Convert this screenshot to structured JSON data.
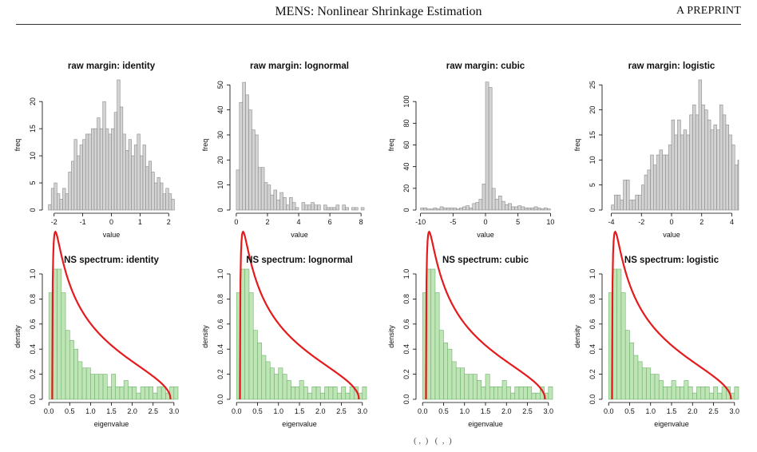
{
  "header": {
    "title": "MENS: Nonlinear Shrinkage Estimation",
    "right_tag": "A PREPRINT"
  },
  "caption_fragment": "( ,  )   (  ,  )",
  "colors": {
    "hist_fill": "#d3d3d3",
    "hist_stroke": "#8a8a8a",
    "spec_fill": "#bfe5b7",
    "spec_stroke": "#6cb26a",
    "curve": "#e41a1c"
  },
  "chart_data": [
    {
      "type": "bar",
      "title": "raw margin: identity",
      "xlabel": "value",
      "ylabel": "freq",
      "xlim": [
        -2.3,
        2.3
      ],
      "ylim": [
        0,
        24
      ],
      "xticks": [
        -2,
        -1,
        0,
        1,
        2
      ],
      "yticks": [
        0,
        5,
        10,
        15,
        20
      ],
      "bin_start": -2.2,
      "bin_width": 0.1,
      "values": [
        1,
        4,
        5,
        3,
        2,
        4,
        3,
        7,
        9,
        13,
        10,
        12,
        13,
        14,
        14,
        15,
        15,
        17,
        15,
        20,
        15,
        14,
        15,
        18,
        24,
        19,
        14,
        11,
        13,
        10,
        12,
        14,
        10,
        12,
        8,
        9,
        7,
        5,
        6,
        5,
        3,
        4,
        3,
        2
      ]
    },
    {
      "type": "bar",
      "title": "raw margin: lognormal",
      "xlabel": "value",
      "ylabel": "freq",
      "xlim": [
        -0.2,
        8.3
      ],
      "ylim": [
        0,
        52
      ],
      "xticks": [
        0,
        2,
        4,
        6,
        8
      ],
      "yticks": [
        0,
        10,
        20,
        30,
        40,
        50
      ],
      "bin_start": 0,
      "bin_width": 0.2,
      "values": [
        16,
        43,
        51,
        46,
        40,
        32,
        30,
        17,
        17,
        11,
        10,
        6,
        8,
        4,
        7,
        5,
        2,
        5,
        3,
        1,
        0,
        3,
        2,
        2,
        3,
        2,
        2,
        0,
        2,
        1,
        1,
        1,
        2,
        0,
        2,
        1,
        0,
        1,
        1,
        0,
        1
      ]
    },
    {
      "type": "bar",
      "title": "raw margin: cubic",
      "xlabel": "value",
      "ylabel": "freq",
      "xlim": [
        -10.2,
        10.2
      ],
      "ylim": [
        0,
        120
      ],
      "xticks": [
        -10,
        -5,
        0,
        5,
        10
      ],
      "yticks": [
        0,
        20,
        40,
        60,
        80,
        100
      ],
      "bin_start": -10,
      "bin_width": 0.5,
      "values": [
        2,
        2,
        1,
        1,
        2,
        1,
        3,
        2,
        2,
        2,
        2,
        1,
        2,
        3,
        4,
        2,
        6,
        7,
        10,
        24,
        118,
        113,
        20,
        10,
        13,
        8,
        5,
        6,
        3,
        3,
        4,
        3,
        2,
        2,
        2,
        3,
        2,
        1,
        2,
        1
      ]
    },
    {
      "type": "bar",
      "title": "raw margin: logistic",
      "xlabel": "value",
      "ylabel": "freq",
      "xlim": [
        -4.4,
        4.4
      ],
      "ylim": [
        0,
        26
      ],
      "xticks": [
        -4,
        -2,
        0,
        2,
        4
      ],
      "yticks": [
        0,
        5,
        10,
        15,
        20,
        25
      ],
      "bin_start": -4,
      "bin_width": 0.2,
      "values": [
        1,
        3,
        3,
        2,
        6,
        6,
        2,
        2,
        3,
        3,
        5,
        7,
        8,
        11,
        9,
        11,
        12,
        11,
        11,
        13,
        18,
        15,
        18,
        15,
        16,
        15,
        19,
        21,
        19,
        26,
        21,
        20,
        18,
        16,
        17,
        16,
        21,
        19,
        17,
        15,
        13,
        9,
        10,
        7,
        10,
        11,
        13,
        9,
        7,
        5,
        8,
        6,
        8,
        7,
        5,
        5,
        6,
        6,
        4,
        4,
        3,
        2,
        1,
        1,
        1,
        3,
        4,
        4,
        1,
        1,
        2,
        4,
        4
      ]
    },
    {
      "type": "bar",
      "title": "NS spectrum: identity",
      "xlabel": "eigenvalue",
      "ylabel": "density",
      "xlim": [
        -0.08,
        3.08
      ],
      "ylim": [
        0,
        1.0
      ],
      "xticks": [
        0.0,
        0.5,
        1.0,
        1.5,
        2.0,
        2.5,
        3.0
      ],
      "yticks": [
        0.0,
        0.2,
        0.4,
        0.6,
        0.8,
        1.0
      ],
      "bin_start": 0,
      "bin_width": 0.1,
      "values": [
        0.85,
        1.2,
        1.2,
        0.85,
        0.55,
        0.47,
        0.4,
        0.3,
        0.25,
        0.25,
        0.2,
        0.2,
        0.2,
        0.2,
        0.1,
        0.2,
        0.1,
        0.1,
        0.15,
        0.1,
        0.1,
        0.05,
        0.1,
        0.1,
        0.1,
        0.05,
        0.1,
        0.1,
        0.05,
        0.1,
        0.1
      ]
    },
    {
      "type": "bar",
      "title": "NS spectrum: lognormal",
      "xlabel": "eigenvalue",
      "ylabel": "density",
      "xlim": [
        -0.08,
        3.08
      ],
      "ylim": [
        0,
        1.0
      ],
      "xticks": [
        0.0,
        0.5,
        1.0,
        1.5,
        2.0,
        2.5,
        3.0
      ],
      "yticks": [
        0.0,
        0.2,
        0.4,
        0.6,
        0.8,
        1.0
      ],
      "bin_start": 0,
      "bin_width": 0.1,
      "values": [
        0.85,
        1.2,
        1.2,
        0.85,
        0.55,
        0.45,
        0.35,
        0.3,
        0.25,
        0.2,
        0.25,
        0.2,
        0.15,
        0.1,
        0.1,
        0.15,
        0.1,
        0.05,
        0.1,
        0.1,
        0.05,
        0.1,
        0.1,
        0.1,
        0.05,
        0.1,
        0.05,
        0.1,
        0.1,
        0.05,
        0.1
      ]
    },
    {
      "type": "bar",
      "title": "NS spectrum: cubic",
      "xlabel": "eigenvalue",
      "ylabel": "density",
      "xlim": [
        -0.08,
        3.08
      ],
      "ylim": [
        0,
        1.0
      ],
      "xticks": [
        0.0,
        0.5,
        1.0,
        1.5,
        2.0,
        2.5,
        3.0
      ],
      "yticks": [
        0.0,
        0.2,
        0.4,
        0.6,
        0.8,
        1.0
      ],
      "bin_start": 0,
      "bin_width": 0.1,
      "values": [
        0.85,
        1.2,
        1.2,
        0.85,
        0.55,
        0.45,
        0.4,
        0.3,
        0.25,
        0.25,
        0.2,
        0.2,
        0.2,
        0.15,
        0.1,
        0.2,
        0.1,
        0.1,
        0.1,
        0.15,
        0.1,
        0.05,
        0.1,
        0.1,
        0.1,
        0.1,
        0.05,
        0.05,
        0.1,
        0.05,
        0.1
      ]
    },
    {
      "type": "bar",
      "title": "NS spectrum: logistic",
      "xlabel": "eigenvalue",
      "ylabel": "density",
      "xlim": [
        -0.08,
        3.08
      ],
      "ylim": [
        0,
        1.0
      ],
      "xticks": [
        0.0,
        0.5,
        1.0,
        1.5,
        2.0,
        2.5,
        3.0
      ],
      "yticks": [
        0.0,
        0.2,
        0.4,
        0.6,
        0.8,
        1.0
      ],
      "bin_start": 0,
      "bin_width": 0.1,
      "values": [
        0.85,
        1.2,
        1.2,
        0.85,
        0.55,
        0.45,
        0.35,
        0.3,
        0.25,
        0.25,
        0.2,
        0.2,
        0.15,
        0.1,
        0.1,
        0.15,
        0.1,
        0.1,
        0.15,
        0.1,
        0.05,
        0.1,
        0.1,
        0.1,
        0.05,
        0.1,
        0.05,
        0.1,
        0.1,
        0.05,
        0.1
      ]
    }
  ],
  "mp_curve": {
    "lambda_minus": 0.08,
    "lambda_plus": 2.92,
    "sigma2": 1.0,
    "ratio": 0.35
  }
}
